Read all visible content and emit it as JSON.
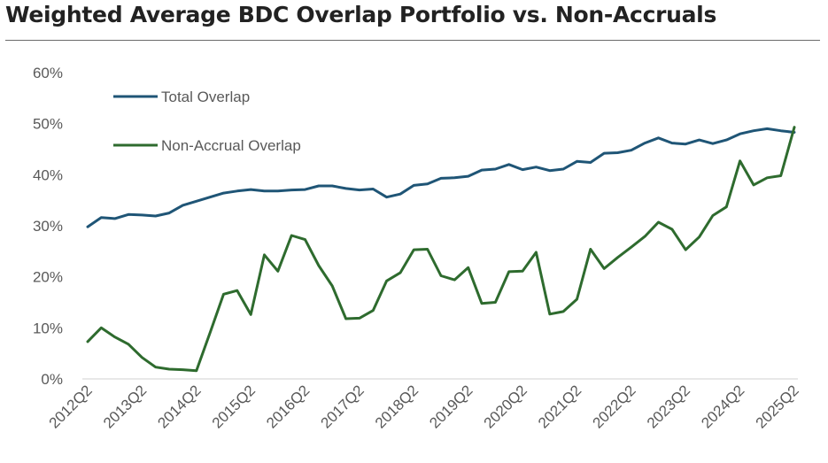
{
  "chart_data": {
    "type": "line",
    "title": "Weighted Average BDC Overlap Portfolio vs. Non-Accruals",
    "xlabel": "",
    "ylabel": "",
    "ylim": [
      0,
      60
    ],
    "y_ticks": [
      "60%",
      "50%",
      "40%",
      "30%",
      "20%",
      "10%",
      "0%"
    ],
    "y_tick_values": [
      60,
      50,
      40,
      30,
      20,
      10,
      0
    ],
    "x": [
      "2012Q2",
      "2012Q3",
      "2012Q4",
      "2013Q1",
      "2013Q2",
      "2013Q3",
      "2013Q4",
      "2014Q1",
      "2014Q2",
      "2014Q3",
      "2014Q4",
      "2015Q1",
      "2015Q2",
      "2015Q3",
      "2015Q4",
      "2016Q1",
      "2016Q2",
      "2016Q3",
      "2016Q4",
      "2017Q1",
      "2017Q2",
      "2017Q3",
      "2017Q4",
      "2018Q1",
      "2018Q2",
      "2018Q3",
      "2018Q4",
      "2019Q1",
      "2019Q2",
      "2019Q3",
      "2019Q4",
      "2020Q1",
      "2020Q2",
      "2020Q3",
      "2020Q4",
      "2021Q1",
      "2021Q2",
      "2021Q3",
      "2021Q4",
      "2022Q1",
      "2022Q2",
      "2022Q3",
      "2022Q4",
      "2023Q1",
      "2023Q2",
      "2023Q3",
      "2023Q4",
      "2024Q1",
      "2024Q2",
      "2024Q3",
      "2024Q4",
      "2025Q1",
      "2025Q2"
    ],
    "x_tick_labels": [
      "2012Q2",
      "2013Q2",
      "2014Q2",
      "2015Q2",
      "2016Q2",
      "2017Q2",
      "2018Q2",
      "2019Q2",
      "2020Q2",
      "2021Q2",
      "2022Q2",
      "2023Q2",
      "2024Q2",
      "2025Q2"
    ],
    "x_tick_indices": [
      0,
      4,
      8,
      12,
      16,
      20,
      24,
      28,
      32,
      36,
      40,
      44,
      48,
      52
    ],
    "legend_position": "top-left",
    "series": [
      {
        "name": "Total Overlap",
        "color": "#1f5576",
        "values": [
          29.8,
          31.6,
          31.4,
          32.2,
          32.1,
          31.9,
          32.5,
          34.0,
          34.8,
          35.6,
          36.4,
          36.8,
          37.1,
          36.8,
          36.8,
          37.0,
          37.1,
          37.8,
          37.8,
          37.3,
          37.0,
          37.2,
          35.6,
          36.2,
          37.9,
          38.2,
          39.3,
          39.4,
          39.7,
          40.9,
          41.1,
          42.0,
          41.0,
          41.5,
          40.8,
          41.1,
          42.6,
          42.4,
          44.2,
          44.3,
          44.8,
          46.2,
          47.2,
          46.2,
          46.0,
          46.8,
          46.1,
          46.8,
          48.0,
          48.6,
          49.0,
          48.6,
          48.3
        ]
      },
      {
        "name": "Non-Accrual Overlap",
        "color": "#2e6b2e",
        "values": [
          7.3,
          10.0,
          8.2,
          6.8,
          4.2,
          2.3,
          1.9,
          1.8,
          1.6,
          9.0,
          16.6,
          17.3,
          12.6,
          24.3,
          21.1,
          28.1,
          27.3,
          22.2,
          18.2,
          11.8,
          11.9,
          13.4,
          19.2,
          20.8,
          25.3,
          25.4,
          20.2,
          19.4,
          21.8,
          14.8,
          15.0,
          21.0,
          21.1,
          24.8,
          12.7,
          13.2,
          15.6,
          25.4,
          21.6,
          23.8,
          25.8,
          27.9,
          30.7,
          29.3,
          25.3,
          27.8,
          32.0,
          33.7,
          42.7,
          38.0,
          39.4,
          39.8,
          49.3
        ]
      }
    ]
  }
}
